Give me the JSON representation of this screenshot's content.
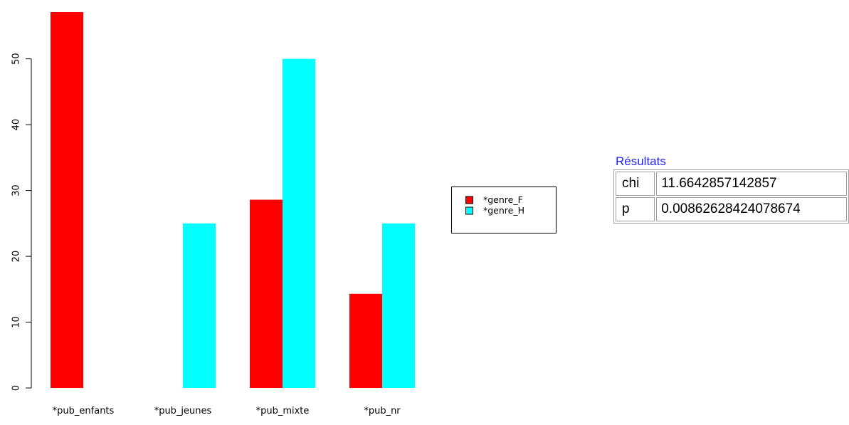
{
  "chart_data": {
    "type": "bar",
    "grouped": true,
    "categories": [
      "*pub_enfants",
      "*pub_jeunes",
      "*pub_mixte",
      "*pub_nr"
    ],
    "series": [
      {
        "name": "*genre_F",
        "color": "#ff0000",
        "values": [
          57.1,
          0,
          28.6,
          14.3
        ]
      },
      {
        "name": "*genre_H",
        "color": "#00ffff",
        "values": [
          0,
          25,
          50,
          25
        ]
      }
    ],
    "y_ticks": [
      "0",
      "10",
      "20",
      "30",
      "40",
      "50"
    ],
    "y_tick_values": [
      0,
      10,
      20,
      30,
      40,
      50
    ],
    "ylim": [
      0,
      57.1
    ],
    "grid": false,
    "legend_position": "right"
  },
  "results": {
    "title": "Résultats",
    "rows": [
      {
        "key": "chi",
        "value": "11.6642857142857"
      },
      {
        "key": "p",
        "value": "0.00862628424078674"
      }
    ]
  }
}
